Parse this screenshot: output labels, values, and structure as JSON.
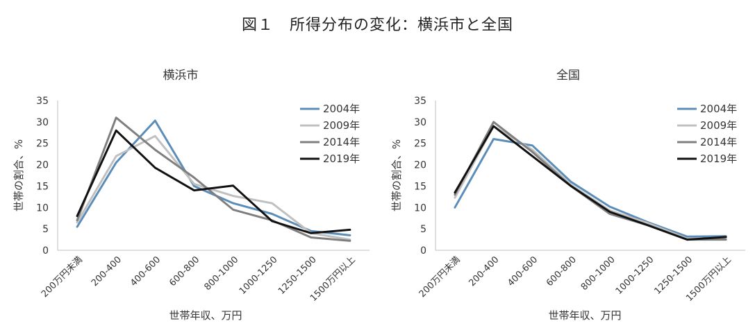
{
  "figure_title": "図１　所得分布の変化：横浜市と全国",
  "chart_data": [
    {
      "type": "line",
      "title": "横浜市",
      "categories": [
        "200万円未満",
        "200-400",
        "400-600",
        "600-800",
        "800-1000",
        "1000-1250",
        "1250-1500",
        "1500万円以上"
      ],
      "xlabel": "世帯年収、万円",
      "ylabel": "世帯の割合、%",
      "ylim": [
        0,
        35
      ],
      "yticks": [
        0,
        5,
        10,
        15,
        20,
        25,
        30,
        35
      ],
      "legend_position": "top-right",
      "grid": false,
      "series": [
        {
          "name": "2004年",
          "color": "#5b8db8",
          "values": [
            5.5,
            20.5,
            30.3,
            15.0,
            11.0,
            8.5,
            4.5,
            3.5
          ]
        },
        {
          "name": "2009年",
          "color": "#c0c0c0",
          "values": [
            6.5,
            22.0,
            26.7,
            15.5,
            12.7,
            11.0,
            4.0,
            2.5
          ]
        },
        {
          "name": "2014年",
          "color": "#7f7f7f",
          "values": [
            7.0,
            31.0,
            23.5,
            17.0,
            9.5,
            7.0,
            3.0,
            2.2
          ]
        },
        {
          "name": "2019年",
          "color": "#111111",
          "values": [
            8.0,
            28.0,
            19.3,
            14.0,
            15.1,
            6.8,
            4.0,
            4.8
          ]
        }
      ]
    },
    {
      "type": "line",
      "title": "全国",
      "categories": [
        "200万円未満",
        "200-400",
        "400-600",
        "600-800",
        "800-1000",
        "1000-1250",
        "1250-1500",
        "1500万円以上"
      ],
      "xlabel": "世帯年収、万円",
      "ylabel": "世帯の割合、%",
      "ylim": [
        0,
        35
      ],
      "yticks": [
        0,
        5,
        10,
        15,
        20,
        25,
        30,
        35
      ],
      "legend_position": "top-right",
      "grid": false,
      "series": [
        {
          "name": "2004年",
          "color": "#5b8db8",
          "values": [
            10.0,
            26.0,
            24.5,
            16.0,
            10.2,
            6.5,
            3.2,
            3.3
          ]
        },
        {
          "name": "2009年",
          "color": "#c0c0c0",
          "values": [
            12.3,
            29.0,
            23.5,
            15.3,
            9.3,
            6.3,
            2.7,
            2.6
          ]
        },
        {
          "name": "2014年",
          "color": "#7f7f7f",
          "values": [
            13.0,
            30.0,
            23.0,
            15.0,
            8.5,
            5.8,
            2.5,
            2.5
          ]
        },
        {
          "name": "2019年",
          "color": "#111111",
          "values": [
            13.5,
            29.0,
            22.0,
            15.0,
            9.0,
            5.8,
            2.5,
            3.1
          ]
        }
      ]
    }
  ]
}
